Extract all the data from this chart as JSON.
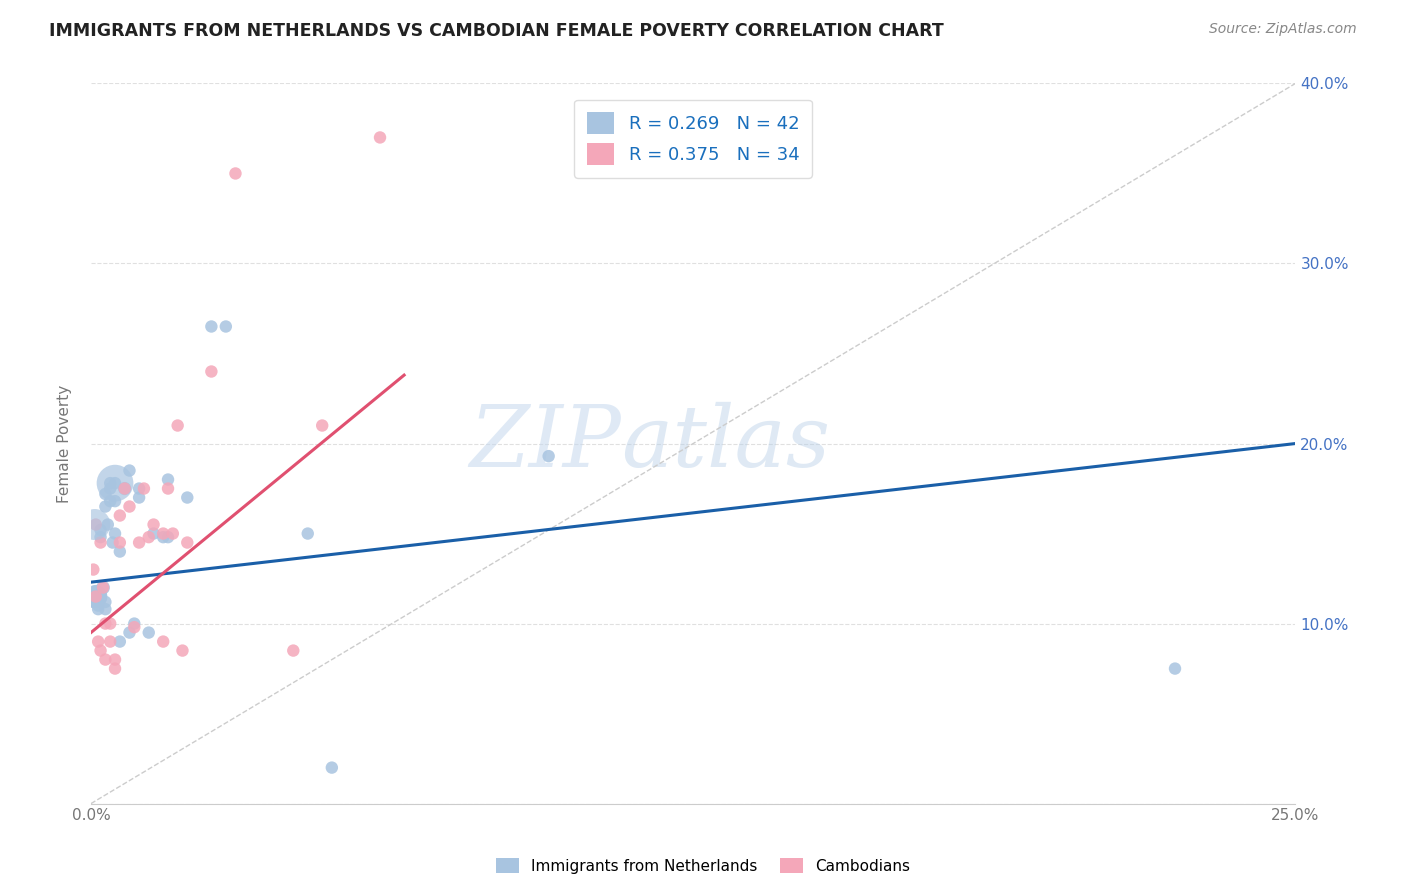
{
  "title": "IMMIGRANTS FROM NETHERLANDS VS CAMBODIAN FEMALE POVERTY CORRELATION CHART",
  "source": "Source: ZipAtlas.com",
  "ylabel": "Female Poverty",
  "xlim": [
    0,
    0.25
  ],
  "ylim": [
    0,
    0.4
  ],
  "legend_label1": "Immigrants from Netherlands",
  "legend_label2": "Cambodians",
  "R1": 0.269,
  "N1": 42,
  "R2": 0.375,
  "N2": 34,
  "color1": "#a8c4e0",
  "color2": "#f4a7b9",
  "trendline1_color": "#1a5fa8",
  "trendline2_color": "#e05070",
  "ref_line_color": "#cccccc",
  "watermark_color": "#d8e8f5",
  "netherlands_x": [
    0.0005,
    0.001,
    0.001,
    0.0015,
    0.0015,
    0.002,
    0.002,
    0.002,
    0.002,
    0.0025,
    0.003,
    0.003,
    0.003,
    0.003,
    0.0035,
    0.004,
    0.004,
    0.004,
    0.0045,
    0.005,
    0.005,
    0.005,
    0.006,
    0.006,
    0.007,
    0.008,
    0.008,
    0.009,
    0.01,
    0.01,
    0.012,
    0.013,
    0.015,
    0.016,
    0.016,
    0.02,
    0.025,
    0.028,
    0.045,
    0.05,
    0.095,
    0.225
  ],
  "netherlands_y": [
    0.112,
    0.115,
    0.118,
    0.11,
    0.108,
    0.114,
    0.116,
    0.148,
    0.152,
    0.12,
    0.112,
    0.108,
    0.165,
    0.172,
    0.155,
    0.168,
    0.175,
    0.178,
    0.145,
    0.168,
    0.178,
    0.15,
    0.09,
    0.14,
    0.175,
    0.095,
    0.185,
    0.1,
    0.17,
    0.175,
    0.095,
    0.15,
    0.148,
    0.18,
    0.148,
    0.17,
    0.265,
    0.265,
    0.15,
    0.02,
    0.193,
    0.075
  ],
  "netherlands_size": [
    80,
    280,
    80,
    80,
    80,
    80,
    80,
    80,
    80,
    100,
    80,
    80,
    80,
    80,
    80,
    80,
    80,
    80,
    80,
    80,
    80,
    80,
    80,
    80,
    90,
    80,
    80,
    80,
    80,
    80,
    80,
    80,
    80,
    80,
    80,
    80,
    80,
    80,
    80,
    80,
    80,
    80
  ],
  "netherlands_size_big": 700,
  "netherlands_big_idx": 20,
  "cambodian_x": [
    0.0005,
    0.001,
    0.001,
    0.0015,
    0.002,
    0.002,
    0.0025,
    0.003,
    0.003,
    0.004,
    0.004,
    0.005,
    0.005,
    0.006,
    0.006,
    0.007,
    0.008,
    0.009,
    0.01,
    0.011,
    0.012,
    0.013,
    0.015,
    0.015,
    0.016,
    0.017,
    0.018,
    0.019,
    0.02,
    0.025,
    0.03,
    0.042,
    0.048,
    0.06
  ],
  "cambodian_y": [
    0.13,
    0.155,
    0.115,
    0.09,
    0.145,
    0.085,
    0.12,
    0.1,
    0.08,
    0.09,
    0.1,
    0.08,
    0.075,
    0.145,
    0.16,
    0.175,
    0.165,
    0.098,
    0.145,
    0.175,
    0.148,
    0.155,
    0.09,
    0.15,
    0.175,
    0.15,
    0.21,
    0.085,
    0.145,
    0.24,
    0.35,
    0.085,
    0.21,
    0.37
  ],
  "cambodian_size": [
    80,
    80,
    80,
    80,
    80,
    80,
    80,
    80,
    80,
    80,
    80,
    80,
    80,
    80,
    80,
    80,
    80,
    80,
    80,
    80,
    80,
    80,
    80,
    80,
    80,
    80,
    80,
    80,
    80,
    80,
    80,
    80,
    80,
    80
  ],
  "trendline1_x0": 0.0,
  "trendline1_y0": 0.123,
  "trendline1_x1": 0.25,
  "trendline1_y1": 0.2,
  "trendline2_x0": 0.0,
  "trendline2_y0": 0.095,
  "trendline2_x1": 0.065,
  "trendline2_y1": 0.238
}
